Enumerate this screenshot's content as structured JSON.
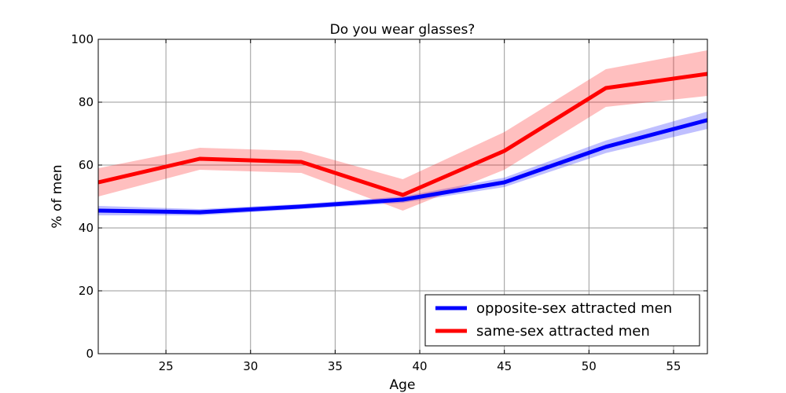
{
  "chart_data": {
    "type": "line",
    "title": "Do you wear glasses?",
    "xlabel": "Age",
    "ylabel": "%  of men",
    "xlim": [
      21,
      57
    ],
    "ylim": [
      0,
      100
    ],
    "xticks": [
      25,
      30,
      35,
      40,
      45,
      50,
      55
    ],
    "yticks": [
      0,
      20,
      40,
      60,
      80,
      100
    ],
    "grid": true,
    "legend_position": "bottom-right",
    "x": [
      21,
      27,
      33,
      39,
      45,
      51,
      57
    ],
    "series": [
      {
        "name": "opposite-sex attracted men",
        "color": "#0000ff",
        "values": [
          45.5,
          45.0,
          46.8,
          49.0,
          54.5,
          65.8,
          74.3
        ],
        "lower": [
          44.0,
          44.0,
          46.0,
          48.0,
          53.0,
          63.8,
          71.5
        ],
        "upper": [
          47.0,
          46.0,
          47.6,
          50.0,
          56.0,
          67.8,
          77.0
        ]
      },
      {
        "name": "same-sex attracted men",
        "color": "#ff0000",
        "values": [
          54.5,
          62.0,
          61.0,
          50.5,
          64.5,
          84.5,
          89.0
        ],
        "lower": [
          50.0,
          58.5,
          57.5,
          45.5,
          58.5,
          78.5,
          82.0
        ],
        "upper": [
          59.0,
          65.5,
          64.5,
          55.5,
          70.5,
          90.5,
          96.5
        ]
      }
    ]
  }
}
